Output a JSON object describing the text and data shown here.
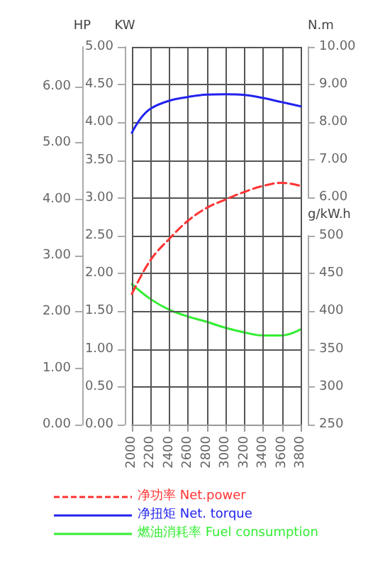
{
  "chart_data": [
    {
      "type": "line",
      "xlim": [
        2000,
        3800
      ],
      "xticks": [
        2000,
        2200,
        2400,
        2600,
        2800,
        3000,
        3200,
        3400,
        3600,
        3800
      ],
      "ylabel": "KW",
      "ylim": [
        0,
        5
      ],
      "yticks": [
        {
          "value": 0,
          "label": "0.00"
        },
        {
          "value": 0.5,
          "label": "0.50"
        },
        {
          "value": 1,
          "label": "1.00"
        },
        {
          "value": 1.5,
          "label": "1.50"
        },
        {
          "value": 2,
          "label": "2.00"
        },
        {
          "value": 2.5,
          "label": "2.50"
        },
        {
          "value": 3,
          "label": "3.00"
        },
        {
          "value": 3.5,
          "label": "3.50"
        },
        {
          "value": 4,
          "label": "4.00"
        },
        {
          "value": 4.5,
          "label": "4.50"
        },
        {
          "value": 5,
          "label": "5.00"
        }
      ],
      "y2label": "N.m",
      "y2lim": [
        6,
        10
      ],
      "y2ticks": [
        {
          "value": 6,
          "label": "6.00"
        },
        {
          "value": 7,
          "label": "7.00"
        },
        {
          "value": 8,
          "label": "8.00"
        },
        {
          "value": 9,
          "label": "9.00"
        },
        {
          "value": 10,
          "label": "10.00"
        }
      ],
      "grid": true,
      "legend": "bottom",
      "marker": "none",
      "series": [
        {
          "name": "净功率 Net.power",
          "color": "#ff3333",
          "line_style": "dashed",
          "x": [
            2000,
            2200,
            2400,
            2600,
            2800,
            3000,
            3200,
            3400,
            3600,
            3800
          ],
          "values": [
            1.73,
            2.18,
            2.46,
            2.7,
            2.87,
            2.98,
            3.08,
            3.16,
            3.2,
            3.16
          ]
        },
        {
          "name": "净扭矩 Net. torque",
          "color": "#2222ee",
          "line_style": "solid",
          "axis": "y2",
          "x": [
            2000,
            2100,
            2200,
            2400,
            2600,
            2800,
            3000,
            3200,
            3400,
            3600,
            3800
          ],
          "values": [
            7.72,
            8.12,
            8.36,
            8.57,
            8.67,
            8.73,
            8.74,
            8.72,
            8.64,
            8.53,
            8.42
          ]
        }
      ]
    },
    {
      "type": "line",
      "tick_labels": "y",
      "xlim": [
        2000,
        3800
      ],
      "ylabel": "HP",
      "ylim": [
        0,
        6.705
      ],
      "yticks": [
        {
          "value": 0,
          "label": "0.00"
        },
        {
          "value": 1,
          "label": "1.00"
        },
        {
          "value": 2,
          "label": "2.00"
        },
        {
          "value": 3,
          "label": "3.00"
        },
        {
          "value": 4,
          "label": "4.00"
        },
        {
          "value": 5,
          "label": "5.00"
        },
        {
          "value": 6,
          "label": "6.00"
        }
      ],
      "y2label": "g/kW.h",
      "y2lim": [
        250,
        500
      ],
      "y2ticks": [
        250,
        300,
        350,
        400,
        450,
        500
      ],
      "legend": "bottom",
      "marker": "none",
      "series": [
        {
          "name": "燃油消耗率 Fuel consumption",
          "color": "#33ee33",
          "line_style": "solid",
          "axis": "y2",
          "x": [
            2000,
            2200,
            2400,
            2600,
            2800,
            3000,
            3200,
            3400,
            3600,
            3800
          ],
          "values": [
            436,
            416,
            402,
            393,
            386,
            378,
            372,
            368,
            368,
            376
          ]
        }
      ]
    }
  ]
}
